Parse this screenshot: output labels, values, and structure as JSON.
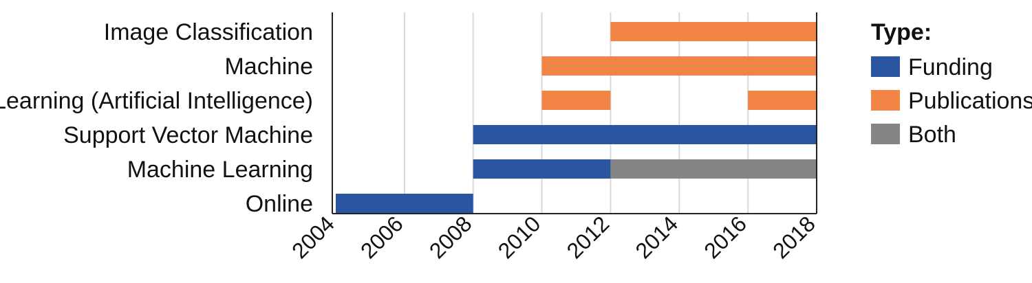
{
  "chart_data": {
    "type": "gantt",
    "x_axis": {
      "min": 2004,
      "max": 2018,
      "ticks": [
        "2004",
        "2006",
        "2008",
        "2010",
        "2012",
        "2014",
        "2016",
        "2018"
      ],
      "grid": true
    },
    "categories": [
      "Image Classification",
      "Machine",
      "Learning (Artificial Intelligence)",
      "Support Vector Machine",
      "Machine Learning",
      "Online"
    ],
    "bars": [
      {
        "category": "Image Classification",
        "start": 2012,
        "end": 2018,
        "type": "Publications"
      },
      {
        "category": "Machine",
        "start": 2010,
        "end": 2018,
        "type": "Publications"
      },
      {
        "category": "Learning (Artificial Intelligence)",
        "start": 2010,
        "end": 2012,
        "type": "Publications"
      },
      {
        "category": "Learning (Artificial Intelligence)",
        "start": 2016,
        "end": 2018,
        "type": "Publications"
      },
      {
        "category": "Support Vector Machine",
        "start": 2008,
        "end": 2018,
        "type": "Funding"
      },
      {
        "category": "Machine Learning",
        "start": 2008,
        "end": 2012,
        "type": "Funding"
      },
      {
        "category": "Machine Learning",
        "start": 2012,
        "end": 2018,
        "type": "Both"
      },
      {
        "category": "Online",
        "start": 2004,
        "end": 2008,
        "type": "Funding"
      }
    ],
    "legend": {
      "title": "Type:",
      "placement": "right",
      "entries": [
        {
          "label": "Funding",
          "color": "#2B55A0"
        },
        {
          "label": "Publications",
          "color": "#F28446"
        },
        {
          "label": "Both",
          "color": "#858585"
        }
      ]
    }
  }
}
